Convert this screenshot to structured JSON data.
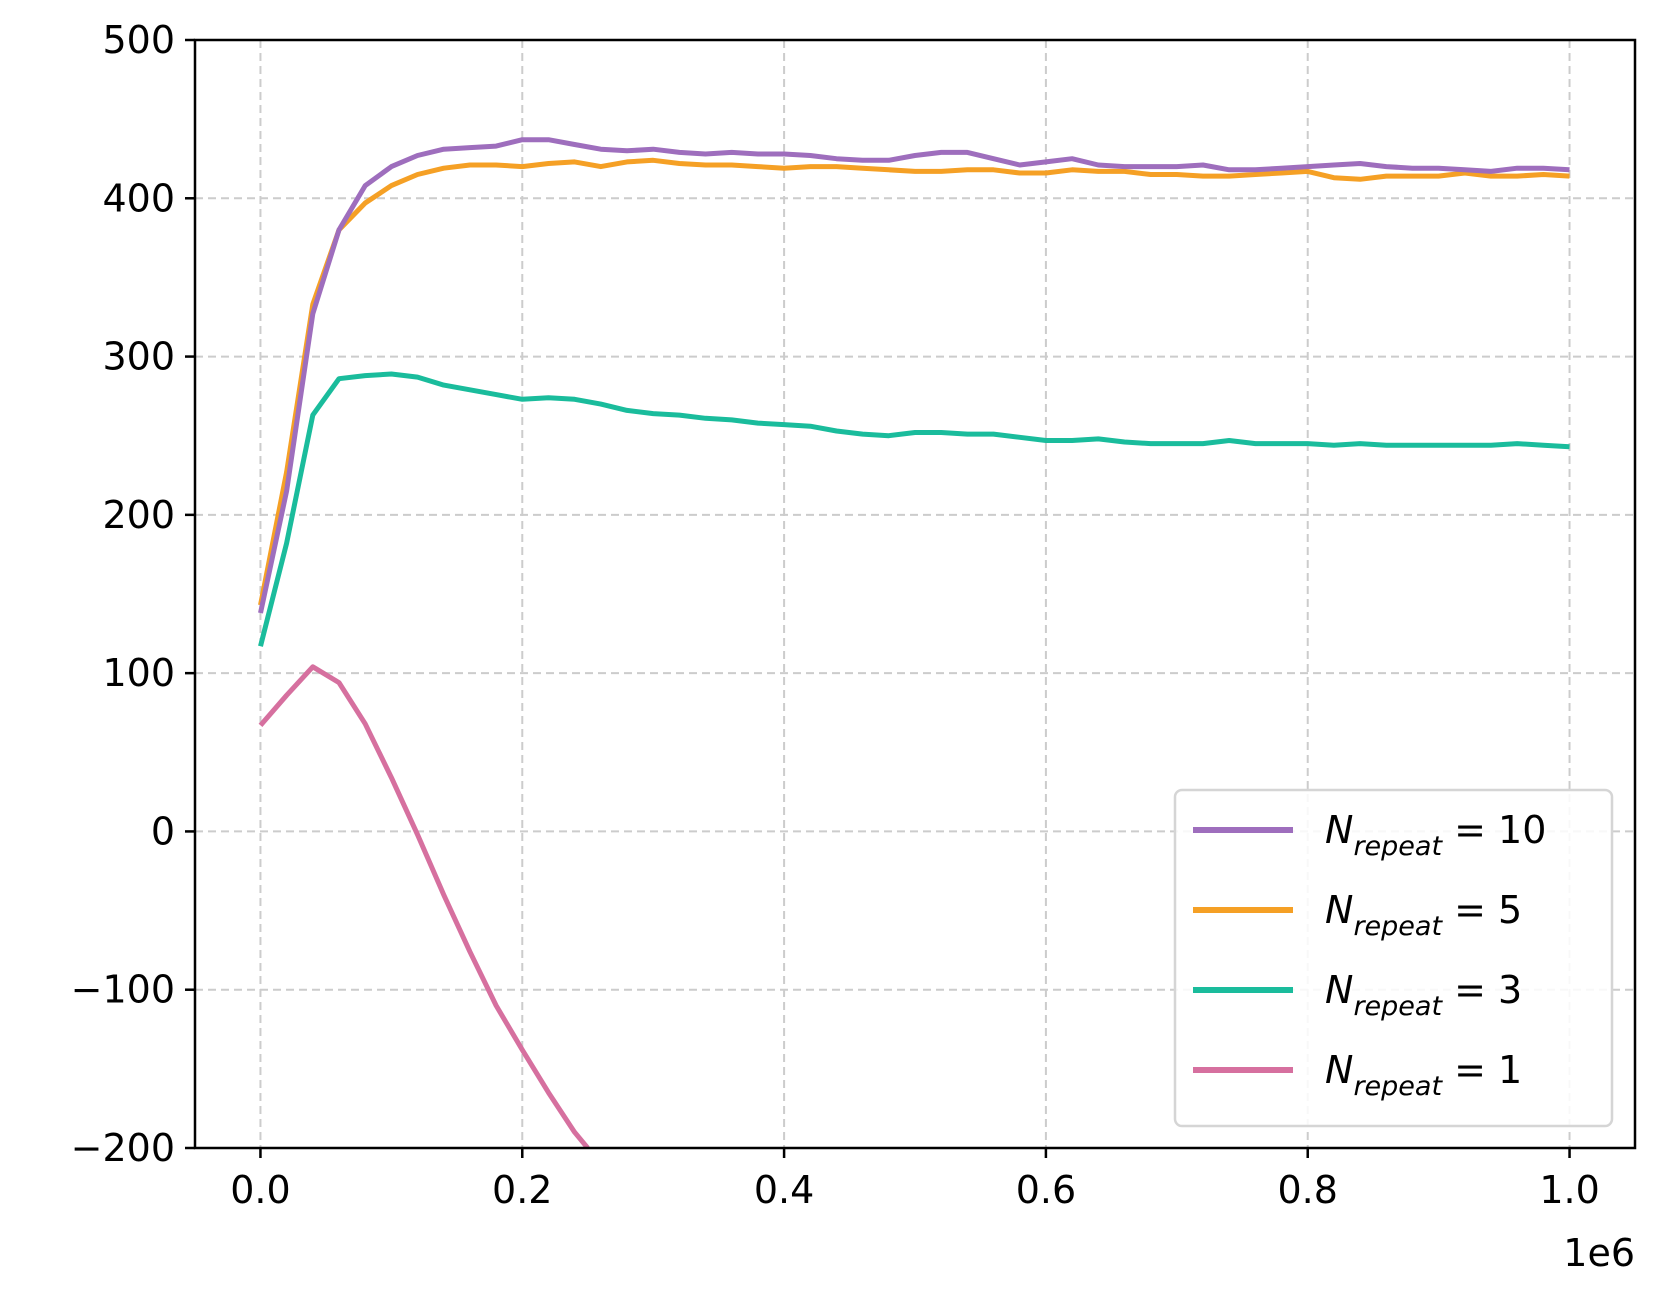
{
  "chart_data": {
    "type": "line",
    "x_offset_label": "1e6",
    "xlim": [
      -0.05,
      1.05
    ],
    "ylim": [
      -200,
      500
    ],
    "x_ticks": [
      0.0,
      0.2,
      0.4,
      0.6,
      0.8,
      1.0
    ],
    "x_tick_labels": [
      "0.0",
      "0.2",
      "0.4",
      "0.6",
      "0.8",
      "1.0"
    ],
    "y_ticks": [
      -200,
      -100,
      0,
      100,
      200,
      300,
      400,
      500
    ],
    "y_tick_labels": [
      "−200",
      "−100",
      "0",
      "100",
      "200",
      "300",
      "400",
      "500"
    ],
    "grid": true,
    "grid_style": "dashed",
    "legend_position": "lower-right",
    "series": [
      {
        "name": "N_repeat = 10",
        "legend_main": "N",
        "legend_sub": "repeat",
        "legend_value": "10",
        "color": "#9e6ebd",
        "x": [
          0.0,
          0.02,
          0.04,
          0.06,
          0.08,
          0.1,
          0.12,
          0.14,
          0.16,
          0.18,
          0.2,
          0.22,
          0.24,
          0.26,
          0.28,
          0.3,
          0.32,
          0.34,
          0.36,
          0.38,
          0.4,
          0.42,
          0.44,
          0.46,
          0.48,
          0.5,
          0.52,
          0.54,
          0.56,
          0.58,
          0.6,
          0.62,
          0.64,
          0.66,
          0.68,
          0.7,
          0.72,
          0.74,
          0.76,
          0.78,
          0.8,
          0.82,
          0.84,
          0.86,
          0.88,
          0.9,
          0.92,
          0.94,
          0.96,
          0.98,
          1.0
        ],
        "y": [
          138,
          215,
          327,
          380,
          408,
          420,
          427,
          431,
          432,
          433,
          437,
          437,
          434,
          431,
          430,
          431,
          429,
          428,
          429,
          428,
          428,
          427,
          425,
          424,
          424,
          427,
          429,
          429,
          425,
          421,
          423,
          425,
          421,
          420,
          420,
          420,
          421,
          418,
          418,
          419,
          420,
          421,
          422,
          420,
          419,
          419,
          418,
          417,
          419,
          419,
          418
        ]
      },
      {
        "name": "N_repeat = 5",
        "legend_main": "N",
        "legend_sub": "repeat",
        "legend_value": "5",
        "color": "#f5a025",
        "x": [
          0.0,
          0.02,
          0.04,
          0.06,
          0.08,
          0.1,
          0.12,
          0.14,
          0.16,
          0.18,
          0.2,
          0.22,
          0.24,
          0.26,
          0.28,
          0.3,
          0.32,
          0.34,
          0.36,
          0.38,
          0.4,
          0.42,
          0.44,
          0.46,
          0.48,
          0.5,
          0.52,
          0.54,
          0.56,
          0.58,
          0.6,
          0.62,
          0.64,
          0.66,
          0.68,
          0.7,
          0.72,
          0.74,
          0.76,
          0.78,
          0.8,
          0.82,
          0.84,
          0.86,
          0.88,
          0.9,
          0.92,
          0.94,
          0.96,
          0.98,
          1.0
        ],
        "y": [
          143,
          227,
          333,
          380,
          397,
          408,
          415,
          419,
          421,
          421,
          420,
          422,
          423,
          420,
          423,
          424,
          422,
          421,
          421,
          420,
          419,
          420,
          420,
          419,
          418,
          417,
          417,
          418,
          418,
          416,
          416,
          418,
          417,
          417,
          415,
          415,
          414,
          414,
          415,
          416,
          417,
          413,
          412,
          414,
          414,
          414,
          416,
          414,
          414,
          415,
          414
        ]
      },
      {
        "name": "N_repeat = 3",
        "legend_main": "N",
        "legend_sub": "repeat",
        "legend_value": "3",
        "color": "#1abc9c",
        "x": [
          0.0,
          0.02,
          0.04,
          0.06,
          0.08,
          0.1,
          0.12,
          0.14,
          0.16,
          0.18,
          0.2,
          0.22,
          0.24,
          0.26,
          0.28,
          0.3,
          0.32,
          0.34,
          0.36,
          0.38,
          0.4,
          0.42,
          0.44,
          0.46,
          0.48,
          0.5,
          0.52,
          0.54,
          0.56,
          0.58,
          0.6,
          0.62,
          0.64,
          0.66,
          0.68,
          0.7,
          0.72,
          0.74,
          0.76,
          0.78,
          0.8,
          0.82,
          0.84,
          0.86,
          0.88,
          0.9,
          0.92,
          0.94,
          0.96,
          0.98,
          1.0
        ],
        "y": [
          117,
          182,
          263,
          286,
          288,
          289,
          287,
          282,
          279,
          276,
          273,
          274,
          273,
          270,
          266,
          264,
          263,
          261,
          260,
          258,
          257,
          256,
          253,
          251,
          250,
          252,
          252,
          251,
          251,
          249,
          247,
          247,
          248,
          246,
          245,
          245,
          245,
          247,
          245,
          245,
          245,
          244,
          245,
          244,
          244,
          244,
          244,
          244,
          245,
          244,
          243
        ]
      },
      {
        "name": "N_repeat = 1",
        "legend_main": "N",
        "legend_sub": "repeat",
        "legend_value": "1",
        "color": "#d6709f",
        "x": [
          0.0,
          0.02,
          0.04,
          0.06,
          0.08,
          0.1,
          0.12,
          0.14,
          0.16,
          0.18,
          0.2,
          0.22,
          0.24,
          0.25
        ],
        "y": [
          67,
          86,
          104,
          94,
          68,
          34,
          -2,
          -40,
          -76,
          -110,
          -138,
          -165,
          -190,
          -200
        ]
      }
    ]
  }
}
